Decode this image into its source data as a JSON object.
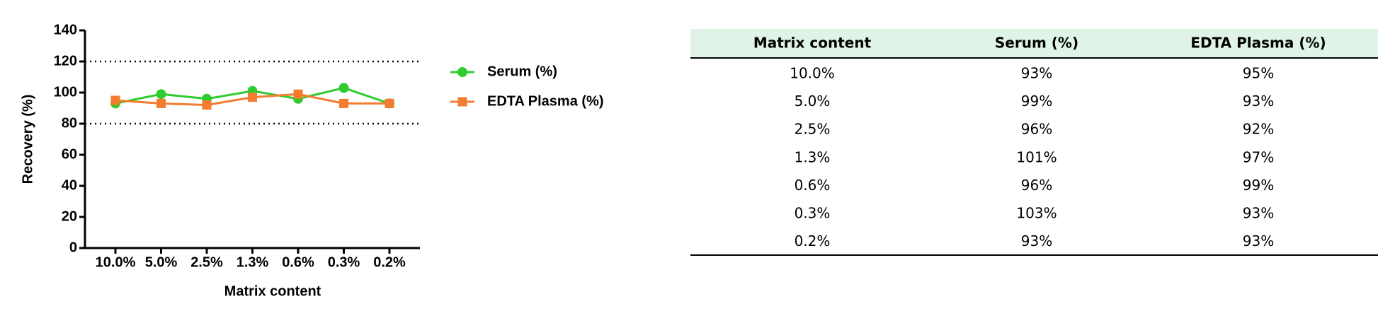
{
  "chart_data": {
    "type": "line",
    "x_label": "Matrix content",
    "y_label": "Recovery (%)",
    "categories": [
      "10.0%",
      "5.0%",
      "2.5%",
      "1.3%",
      "0.6%",
      "0.3%",
      "0.2%"
    ],
    "series": [
      {
        "name": "Serum (%)",
        "color": "#2ecc2e",
        "marker": "circle",
        "values": [
          93,
          99,
          96,
          101,
          96,
          103,
          93
        ]
      },
      {
        "name": "EDTA Plasma (%)",
        "color": "#f47c30",
        "marker": "square",
        "values": [
          95,
          93,
          92,
          97,
          99,
          93,
          93
        ]
      }
    ],
    "ylim": [
      0,
      140
    ],
    "yticks": [
      0,
      20,
      40,
      60,
      80,
      100,
      120,
      140
    ],
    "ref_lines": [
      80,
      120
    ],
    "legend": "right"
  },
  "table": {
    "header": [
      "Matrix content",
      "Serum (%)",
      "EDTA Plasma (%)"
    ],
    "rows": [
      [
        "10.0%",
        "93%",
        "95%"
      ],
      [
        "5.0%",
        "99%",
        "93%"
      ],
      [
        "2.5%",
        "96%",
        "92%"
      ],
      [
        "1.3%",
        "101%",
        "97%"
      ],
      [
        "0.6%",
        "96%",
        "99%"
      ],
      [
        "0.3%",
        "103%",
        "93%"
      ],
      [
        "0.2%",
        "93%",
        "93%"
      ]
    ]
  }
}
